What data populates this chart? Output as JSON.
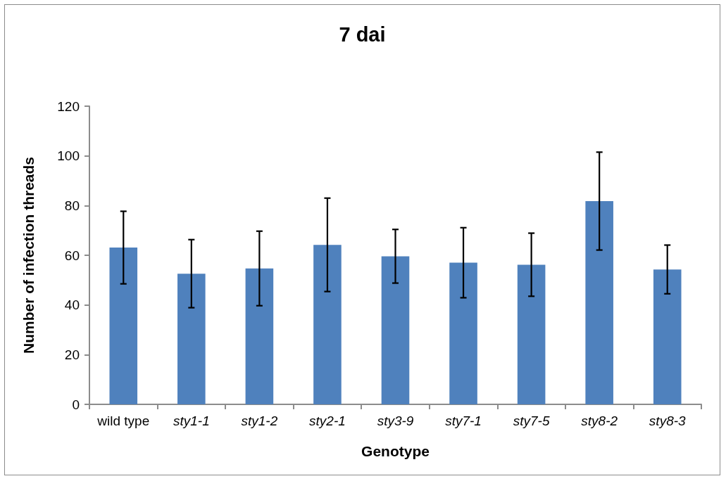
{
  "chart_data": {
    "type": "bar",
    "title": "7 dai",
    "xlabel": "Genotype",
    "ylabel": "Number of infection threads",
    "categories": [
      "wild type",
      "sty1-1",
      "sty1-2",
      "sty2-1",
      "sty3-9",
      "sty7-1",
      "sty7-5",
      "sty8-2",
      "sty8-3"
    ],
    "values": [
      63.1,
      52.6,
      54.7,
      64.2,
      59.6,
      57.0,
      56.2,
      81.8,
      54.3
    ],
    "errors": [
      14.6,
      13.7,
      15,
      18.8,
      10.8,
      14.1,
      12.7,
      19.7,
      9.8
    ],
    "color": "#4f81bd",
    "ylim": [
      0,
      120
    ],
    "yticks": [
      0,
      20,
      40,
      60,
      80,
      100,
      120
    ],
    "grid": false
  }
}
